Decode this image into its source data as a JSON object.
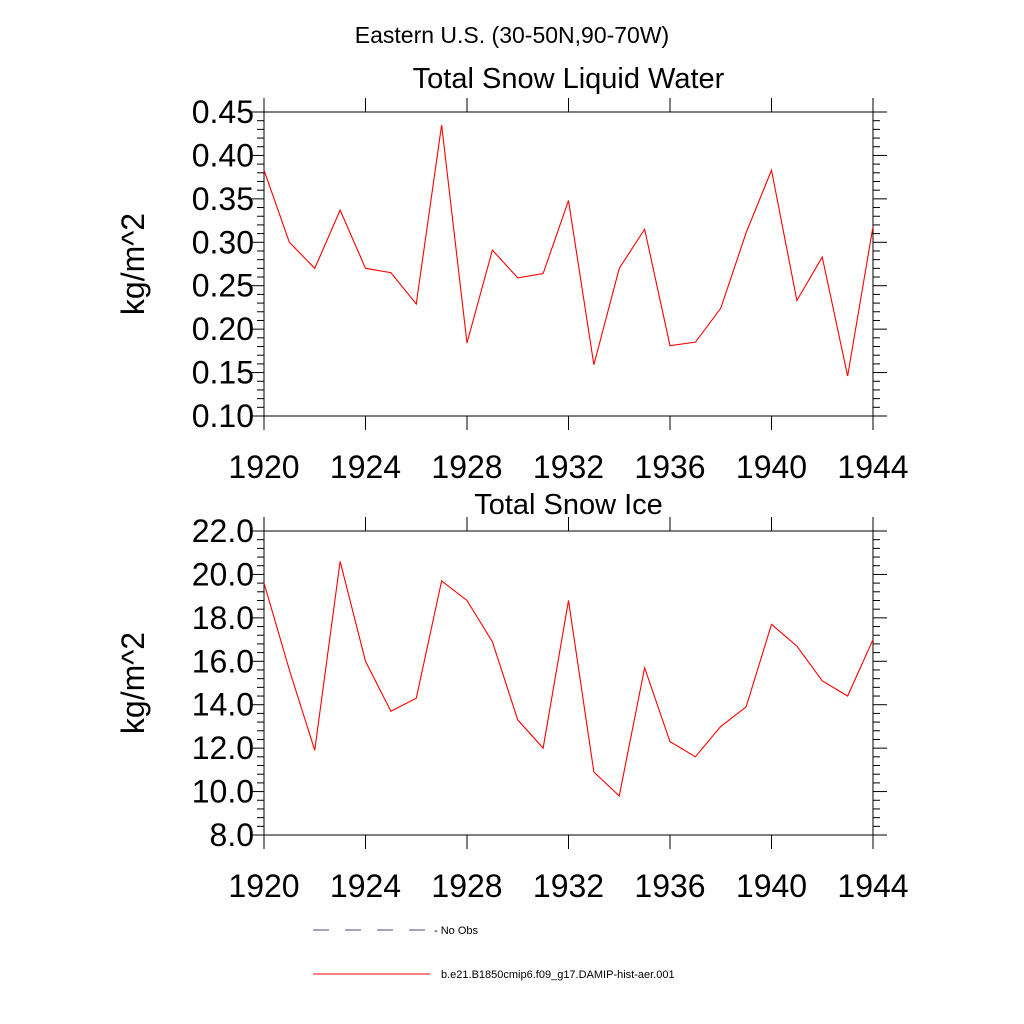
{
  "suptitle": "Eastern U.S. (30-50N,90-70W)",
  "colors": {
    "series": "#ff0000",
    "no_obs": "#4a4a8a",
    "axes": "#000000"
  },
  "chart_data": [
    {
      "type": "line",
      "title": "Total Snow Liquid Water",
      "xlabel": "",
      "ylabel": "kg/m^2",
      "xlim": [
        1920,
        1944
      ],
      "ylim": [
        0.1,
        0.45
      ],
      "x_ticks": [
        "1920",
        "1924",
        "1928",
        "1932",
        "1936",
        "1940",
        "1944"
      ],
      "y_ticks": [
        "0.10",
        "0.15",
        "0.20",
        "0.25",
        "0.30",
        "0.35",
        "0.40",
        "0.45"
      ],
      "x": [
        1920,
        1921,
        1922,
        1923,
        1924,
        1925,
        1926,
        1927,
        1928,
        1929,
        1930,
        1931,
        1932,
        1933,
        1934,
        1935,
        1936,
        1937,
        1938,
        1939,
        1940,
        1941,
        1942,
        1943,
        1944
      ],
      "series": [
        {
          "name": "b.e21.B1850cmip6.f09_g17.DAMIP-hist-aer.001",
          "values": [
            0.383,
            0.3,
            0.27,
            0.337,
            0.27,
            0.265,
            0.229,
            0.435,
            0.184,
            0.291,
            0.259,
            0.264,
            0.348,
            0.159,
            0.27,
            0.315,
            0.181,
            0.185,
            0.224,
            0.311,
            0.383,
            0.233,
            0.283,
            0.146,
            0.318
          ]
        }
      ]
    },
    {
      "type": "line",
      "title": "Total Snow Ice",
      "xlabel": "",
      "ylabel": "kg/m^2",
      "xlim": [
        1920,
        1944
      ],
      "ylim": [
        8.0,
        22.0
      ],
      "x_ticks": [
        "1920",
        "1924",
        "1928",
        "1932",
        "1936",
        "1940",
        "1944"
      ],
      "y_ticks": [
        "8.0",
        "10.0",
        "12.0",
        "14.0",
        "16.0",
        "18.0",
        "20.0",
        "22.0"
      ],
      "x": [
        1920,
        1921,
        1922,
        1923,
        1924,
        1925,
        1926,
        1927,
        1928,
        1929,
        1930,
        1931,
        1932,
        1933,
        1934,
        1935,
        1936,
        1937,
        1938,
        1939,
        1940,
        1941,
        1942,
        1943,
        1944
      ],
      "series": [
        {
          "name": "b.e21.B1850cmip6.f09_g17.DAMIP-hist-aer.001",
          "values": [
            19.6,
            15.6,
            11.9,
            20.6,
            16.0,
            13.7,
            14.3,
            19.7,
            18.8,
            16.9,
            13.3,
            12.0,
            18.8,
            10.9,
            9.8,
            15.7,
            12.3,
            11.6,
            13.0,
            13.9,
            17.7,
            16.7,
            15.1,
            14.4,
            17.0
          ]
        }
      ]
    }
  ],
  "legend": [
    {
      "label": "No Obs",
      "style": "dashed"
    },
    {
      "label": "b.e21.B1850cmip6.f09_g17.DAMIP-hist-aer.001",
      "style": "solid"
    }
  ]
}
